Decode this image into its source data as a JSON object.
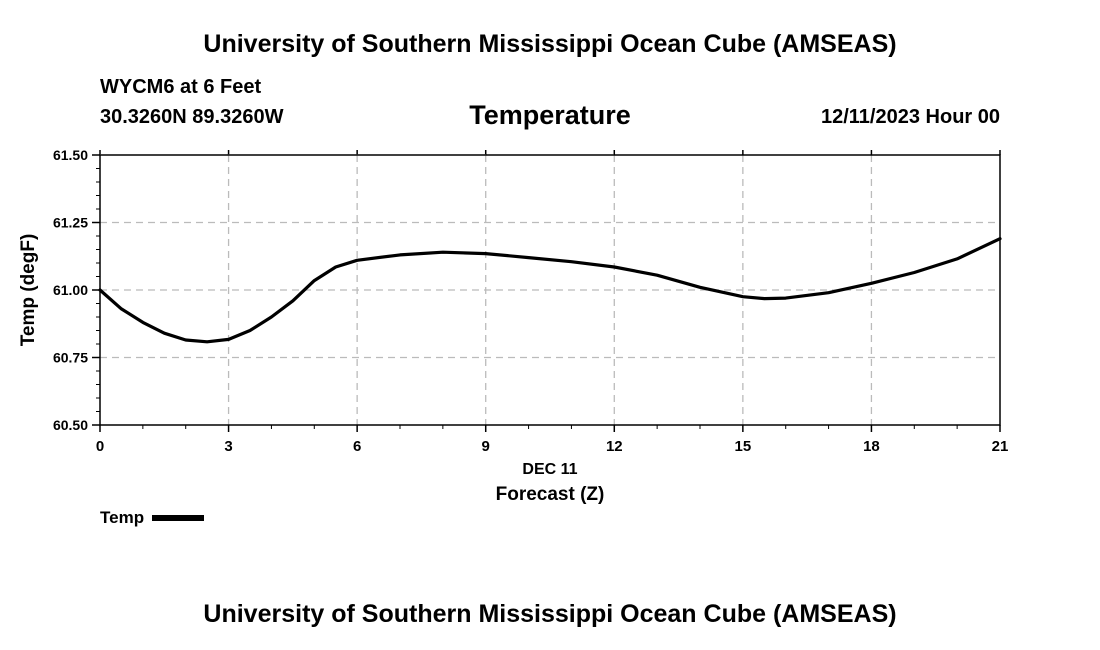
{
  "header": {
    "title": "University of Southern Mississippi Ocean Cube (AMSEAS)",
    "station": "WYCM6 at 6 Feet",
    "coords": "30.3260N  89.3260W",
    "datetime": "12/11/2023 Hour 00"
  },
  "footer": {
    "title": "University of Southern Mississippi Ocean Cube (AMSEAS)"
  },
  "chart_data": {
    "type": "line",
    "title": "Temperature",
    "xlabel": "Forecast (Z)",
    "xsublabel": "DEC 11",
    "ylabel": "Temp (degF)",
    "xlim": [
      0,
      21
    ],
    "ylim": [
      60.5,
      61.5
    ],
    "xticks": [
      0,
      3,
      6,
      9,
      12,
      15,
      18,
      21
    ],
    "yticks": [
      60.5,
      60.75,
      61.0,
      61.25,
      61.5
    ],
    "ytick_labels": [
      "60.50",
      "60.75",
      "61.00",
      "61.25",
      "61.50"
    ],
    "grid": true,
    "legend": "bottom-left",
    "series": [
      {
        "name": "Temp",
        "color": "#000000",
        "x": [
          0,
          0.5,
          1,
          1.5,
          2,
          2.5,
          3,
          3.5,
          4,
          4.5,
          5,
          5.5,
          6,
          7,
          8,
          9,
          10,
          11,
          12,
          13,
          14,
          15,
          15.5,
          16,
          17,
          18,
          19,
          20,
          21
        ],
        "y": [
          61.0,
          60.93,
          60.88,
          60.84,
          60.815,
          60.808,
          60.817,
          60.85,
          60.9,
          60.96,
          61.035,
          61.085,
          61.11,
          61.13,
          61.14,
          61.135,
          61.12,
          61.105,
          61.085,
          61.055,
          61.01,
          60.975,
          60.968,
          60.97,
          60.99,
          61.025,
          61.065,
          61.115,
          61.19
        ]
      }
    ]
  }
}
